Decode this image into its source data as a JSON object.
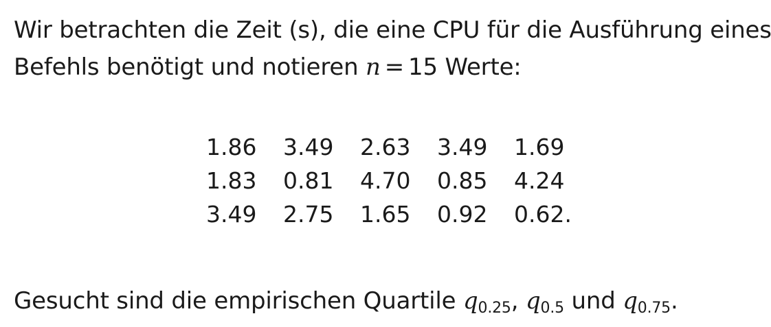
{
  "intro": {
    "line1": "Wir betrachten die Zeit (s), die eine CPU für die Ausführung eines",
    "line2_prefix": "Befehls benötigt und notieren ",
    "n_var": "n",
    "equals": "=",
    "n_value": "15",
    "line2_suffix": " Werte:"
  },
  "values": [
    [
      "1.86",
      "3.49",
      "2.63",
      "3.49",
      "1.69"
    ],
    [
      "1.83",
      "0.81",
      "4.70",
      "0.85",
      "4.24"
    ],
    [
      "3.49",
      "2.75",
      "1.65",
      "0.92",
      "0.62."
    ]
  ],
  "question": {
    "prefix": "Gesucht sind die empirischen Quartile ",
    "q_var": "q",
    "q1_sub": "0.25",
    "q2_sub": "0.5",
    "q3_sub": "0.75",
    "sep": ", ",
    "und": " und ",
    "end": "."
  }
}
